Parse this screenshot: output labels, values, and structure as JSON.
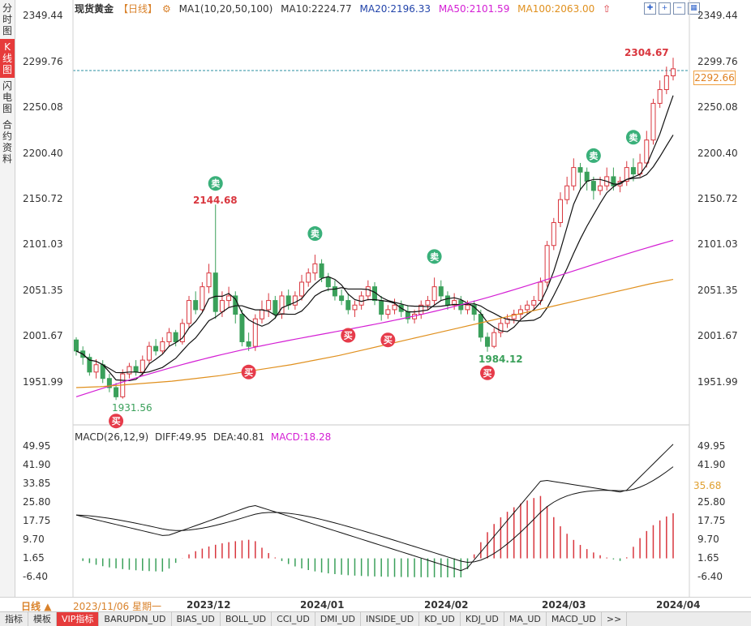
{
  "sidebar": [
    {
      "label": "分时图"
    },
    {
      "label": "K线图"
    },
    {
      "label": "闪电图"
    },
    {
      "label": "合约资料"
    }
  ],
  "header": {
    "title": "现货黄金",
    "period": "【日线】",
    "ma_label": "MA1(10,20,50,100)",
    "ma10": "MA10:2224.77",
    "ma20": "MA20:2196.33",
    "ma50": "MA50:2101.59",
    "ma100": "MA100:2063.00"
  },
  "colors": {
    "up": "#d9363e",
    "down": "#3aa05a",
    "ma10": "#111111",
    "ma20": "#111111",
    "ma50": "#d41fd4",
    "ma100": "#e0901e",
    "dif": "#111111",
    "dea": "#111111",
    "last_price_line": "#2a8fa0"
  },
  "price_axis": {
    "left": [
      "2349.44",
      "2299.76",
      "2250.08",
      "2200.40",
      "2150.72",
      "2101.03",
      "2051.35",
      "2001.67",
      "1951.99"
    ],
    "right": [
      "2349.44",
      "2299.76",
      "2250.08",
      "2200.40",
      "2150.72",
      "2101.03",
      "2051.35",
      "2001.67",
      "1951.99"
    ]
  },
  "last_price": "2292.66",
  "annotations": {
    "high_2304": "2304.67",
    "high_2144": "2144.68",
    "low_1931": "1931.56",
    "low_1984": "1984.12"
  },
  "signals": {
    "buy": "买",
    "sell": "卖"
  },
  "macd": {
    "label": "MACD(26,12,9)",
    "diff": "DIFF:49.95",
    "dea": "DEA:40.81",
    "macd": "MACD:18.28",
    "axis": [
      "49.95",
      "41.90",
      "33.85",
      "25.80",
      "17.75",
      "9.70",
      "1.65",
      "-6.40"
    ],
    "tag": "35.68"
  },
  "date_axis": {
    "period": "日线",
    "start": "2023/11/06 星期一",
    "labels": [
      "2023/12",
      "2024/01",
      "2024/02",
      "2024/03",
      "2024/04"
    ]
  },
  "tabs": [
    "指标",
    "模板",
    "VIP指标",
    "BARUPDN_UD",
    "BIAS_UD",
    "BOLL_UD",
    "CCI_UD",
    "DMI_UD",
    "INSIDE_UD",
    "KD_UD",
    "KDJ_UD",
    "MA_UD",
    "MACD_UD",
    ">>"
  ],
  "chart_data": {
    "type": "candlestick",
    "title": "现货黄金",
    "ylim": [
      1930,
      2350
    ],
    "candles": [
      [
        1997,
        1985,
        2000,
        1980
      ],
      [
        1985,
        1978,
        1990,
        1970
      ],
      [
        1978,
        1962,
        1982,
        1958
      ],
      [
        1962,
        1970,
        1976,
        1955
      ],
      [
        1970,
        1955,
        1975,
        1950
      ],
      [
        1955,
        1945,
        1960,
        1940
      ],
      [
        1945,
        1935,
        1950,
        1931.56
      ],
      [
        1935,
        1960,
        1965,
        1933
      ],
      [
        1960,
        1968,
        1972,
        1955
      ],
      [
        1968,
        1962,
        1975,
        1958
      ],
      [
        1962,
        1975,
        1980,
        1958
      ],
      [
        1975,
        1990,
        1995,
        1970
      ],
      [
        1990,
        1985,
        1998,
        1980
      ],
      [
        1985,
        1995,
        2000,
        1982
      ],
      [
        1995,
        2005,
        2010,
        1990
      ],
      [
        2005,
        1995,
        2008,
        1990
      ],
      [
        1995,
        2015,
        2020,
        1992
      ],
      [
        2015,
        2040,
        2045,
        2010
      ],
      [
        2040,
        2030,
        2050,
        2025
      ],
      [
        2030,
        2055,
        2060,
        2028
      ],
      [
        2055,
        2070,
        2080,
        2048
      ],
      [
        2070,
        2028,
        2144.68,
        2020
      ],
      [
        2028,
        2040,
        2050,
        2022
      ],
      [
        2040,
        2045,
        2055,
        2032
      ],
      [
        2045,
        2025,
        2050,
        2015
      ],
      [
        2025,
        1995,
        2030,
        1990
      ],
      [
        1995,
        1990,
        2005,
        1985
      ],
      [
        1990,
        2020,
        2025,
        1985
      ],
      [
        2020,
        2030,
        2040,
        2015
      ],
      [
        2030,
        2040,
        2048,
        2022
      ],
      [
        2040,
        2025,
        2045,
        2020
      ],
      [
        2025,
        2045,
        2050,
        2020
      ],
      [
        2045,
        2035,
        2052,
        2030
      ],
      [
        2035,
        2045,
        2050,
        2030
      ],
      [
        2045,
        2060,
        2068,
        2040
      ],
      [
        2060,
        2070,
        2075,
        2055
      ],
      [
        2070,
        2080,
        2090,
        2062
      ],
      [
        2080,
        2065,
        2085,
        2060
      ],
      [
        2065,
        2055,
        2070,
        2050
      ],
      [
        2055,
        2045,
        2062,
        2040
      ],
      [
        2045,
        2040,
        2052,
        2035
      ],
      [
        2040,
        2030,
        2048,
        2025
      ],
      [
        2030,
        2035,
        2040,
        2022
      ],
      [
        2035,
        2045,
        2050,
        2030
      ],
      [
        2045,
        2055,
        2062,
        2040
      ],
      [
        2055,
        2040,
        2060,
        2035
      ],
      [
        2040,
        2025,
        2045,
        2018
      ],
      [
        2025,
        2030,
        2035,
        2020
      ],
      [
        2030,
        2035,
        2042,
        2025
      ],
      [
        2035,
        2028,
        2040,
        2022
      ],
      [
        2028,
        2020,
        2035,
        2015
      ],
      [
        2020,
        2025,
        2030,
        2015
      ],
      [
        2025,
        2035,
        2040,
        2020
      ],
      [
        2035,
        2040,
        2045,
        2030
      ],
      [
        2040,
        2055,
        2065,
        2035
      ],
      [
        2055,
        2045,
        2062,
        2040
      ],
      [
        2045,
        2035,
        2050,
        2030
      ],
      [
        2035,
        2040,
        2048,
        2030
      ],
      [
        2040,
        2030,
        2045,
        2025
      ],
      [
        2030,
        2035,
        2040,
        2025
      ],
      [
        2035,
        2025,
        2040,
        2018
      ],
      [
        2025,
        2000,
        2030,
        1995
      ],
      [
        2000,
        1990,
        2005,
        1984.12
      ],
      [
        1990,
        2005,
        2010,
        1988
      ],
      [
        2005,
        2015,
        2020,
        2000
      ],
      [
        2015,
        2020,
        2025,
        2010
      ],
      [
        2020,
        2025,
        2030,
        2015
      ],
      [
        2025,
        2030,
        2035,
        2020
      ],
      [
        2030,
        2035,
        2040,
        2025
      ],
      [
        2035,
        2040,
        2045,
        2030
      ],
      [
        2040,
        2060,
        2065,
        2035
      ],
      [
        2060,
        2100,
        2105,
        2055
      ],
      [
        2100,
        2125,
        2130,
        2095
      ],
      [
        2125,
        2150,
        2158,
        2120
      ],
      [
        2150,
        2165,
        2175,
        2145
      ],
      [
        2165,
        2185,
        2195,
        2160
      ],
      [
        2185,
        2180,
        2190,
        2160
      ],
      [
        2180,
        2170,
        2185,
        2160
      ],
      [
        2170,
        2160,
        2175,
        2150
      ],
      [
        2160,
        2165,
        2175,
        2155
      ],
      [
        2165,
        2175,
        2185,
        2160
      ],
      [
        2175,
        2165,
        2185,
        2160
      ],
      [
        2165,
        2170,
        2175,
        2158
      ],
      [
        2170,
        2185,
        2192,
        2165
      ],
      [
        2185,
        2178,
        2195,
        2170
      ],
      [
        2178,
        2190,
        2200,
        2175
      ],
      [
        2190,
        2215,
        2225,
        2185
      ],
      [
        2215,
        2255,
        2260,
        2210
      ],
      [
        2255,
        2270,
        2280,
        2250
      ],
      [
        2270,
        2285,
        2295,
        2265
      ],
      [
        2285,
        2292.66,
        2304.67,
        2280
      ]
    ],
    "ma100": [
      1945,
      1946,
      1948,
      1950,
      1952,
      1955,
      1958,
      1962,
      1966,
      1970,
      1975,
      1980,
      1986,
      1992,
      1998,
      2004,
      2010,
      2016,
      2022,
      2028,
      2034,
      2040,
      2046,
      2052,
      2058,
      2063
    ],
    "macd_diff_ends": [
      18.28,
      49.95
    ],
    "macd_dea_ends": [
      40.81
    ],
    "series": [
      {
        "name": "MA10",
        "value": 2224.77
      },
      {
        "name": "MA20",
        "value": 2196.33
      },
      {
        "name": "MA50",
        "value": 2101.59
      },
      {
        "name": "MA100",
        "value": 2063.0
      }
    ]
  }
}
